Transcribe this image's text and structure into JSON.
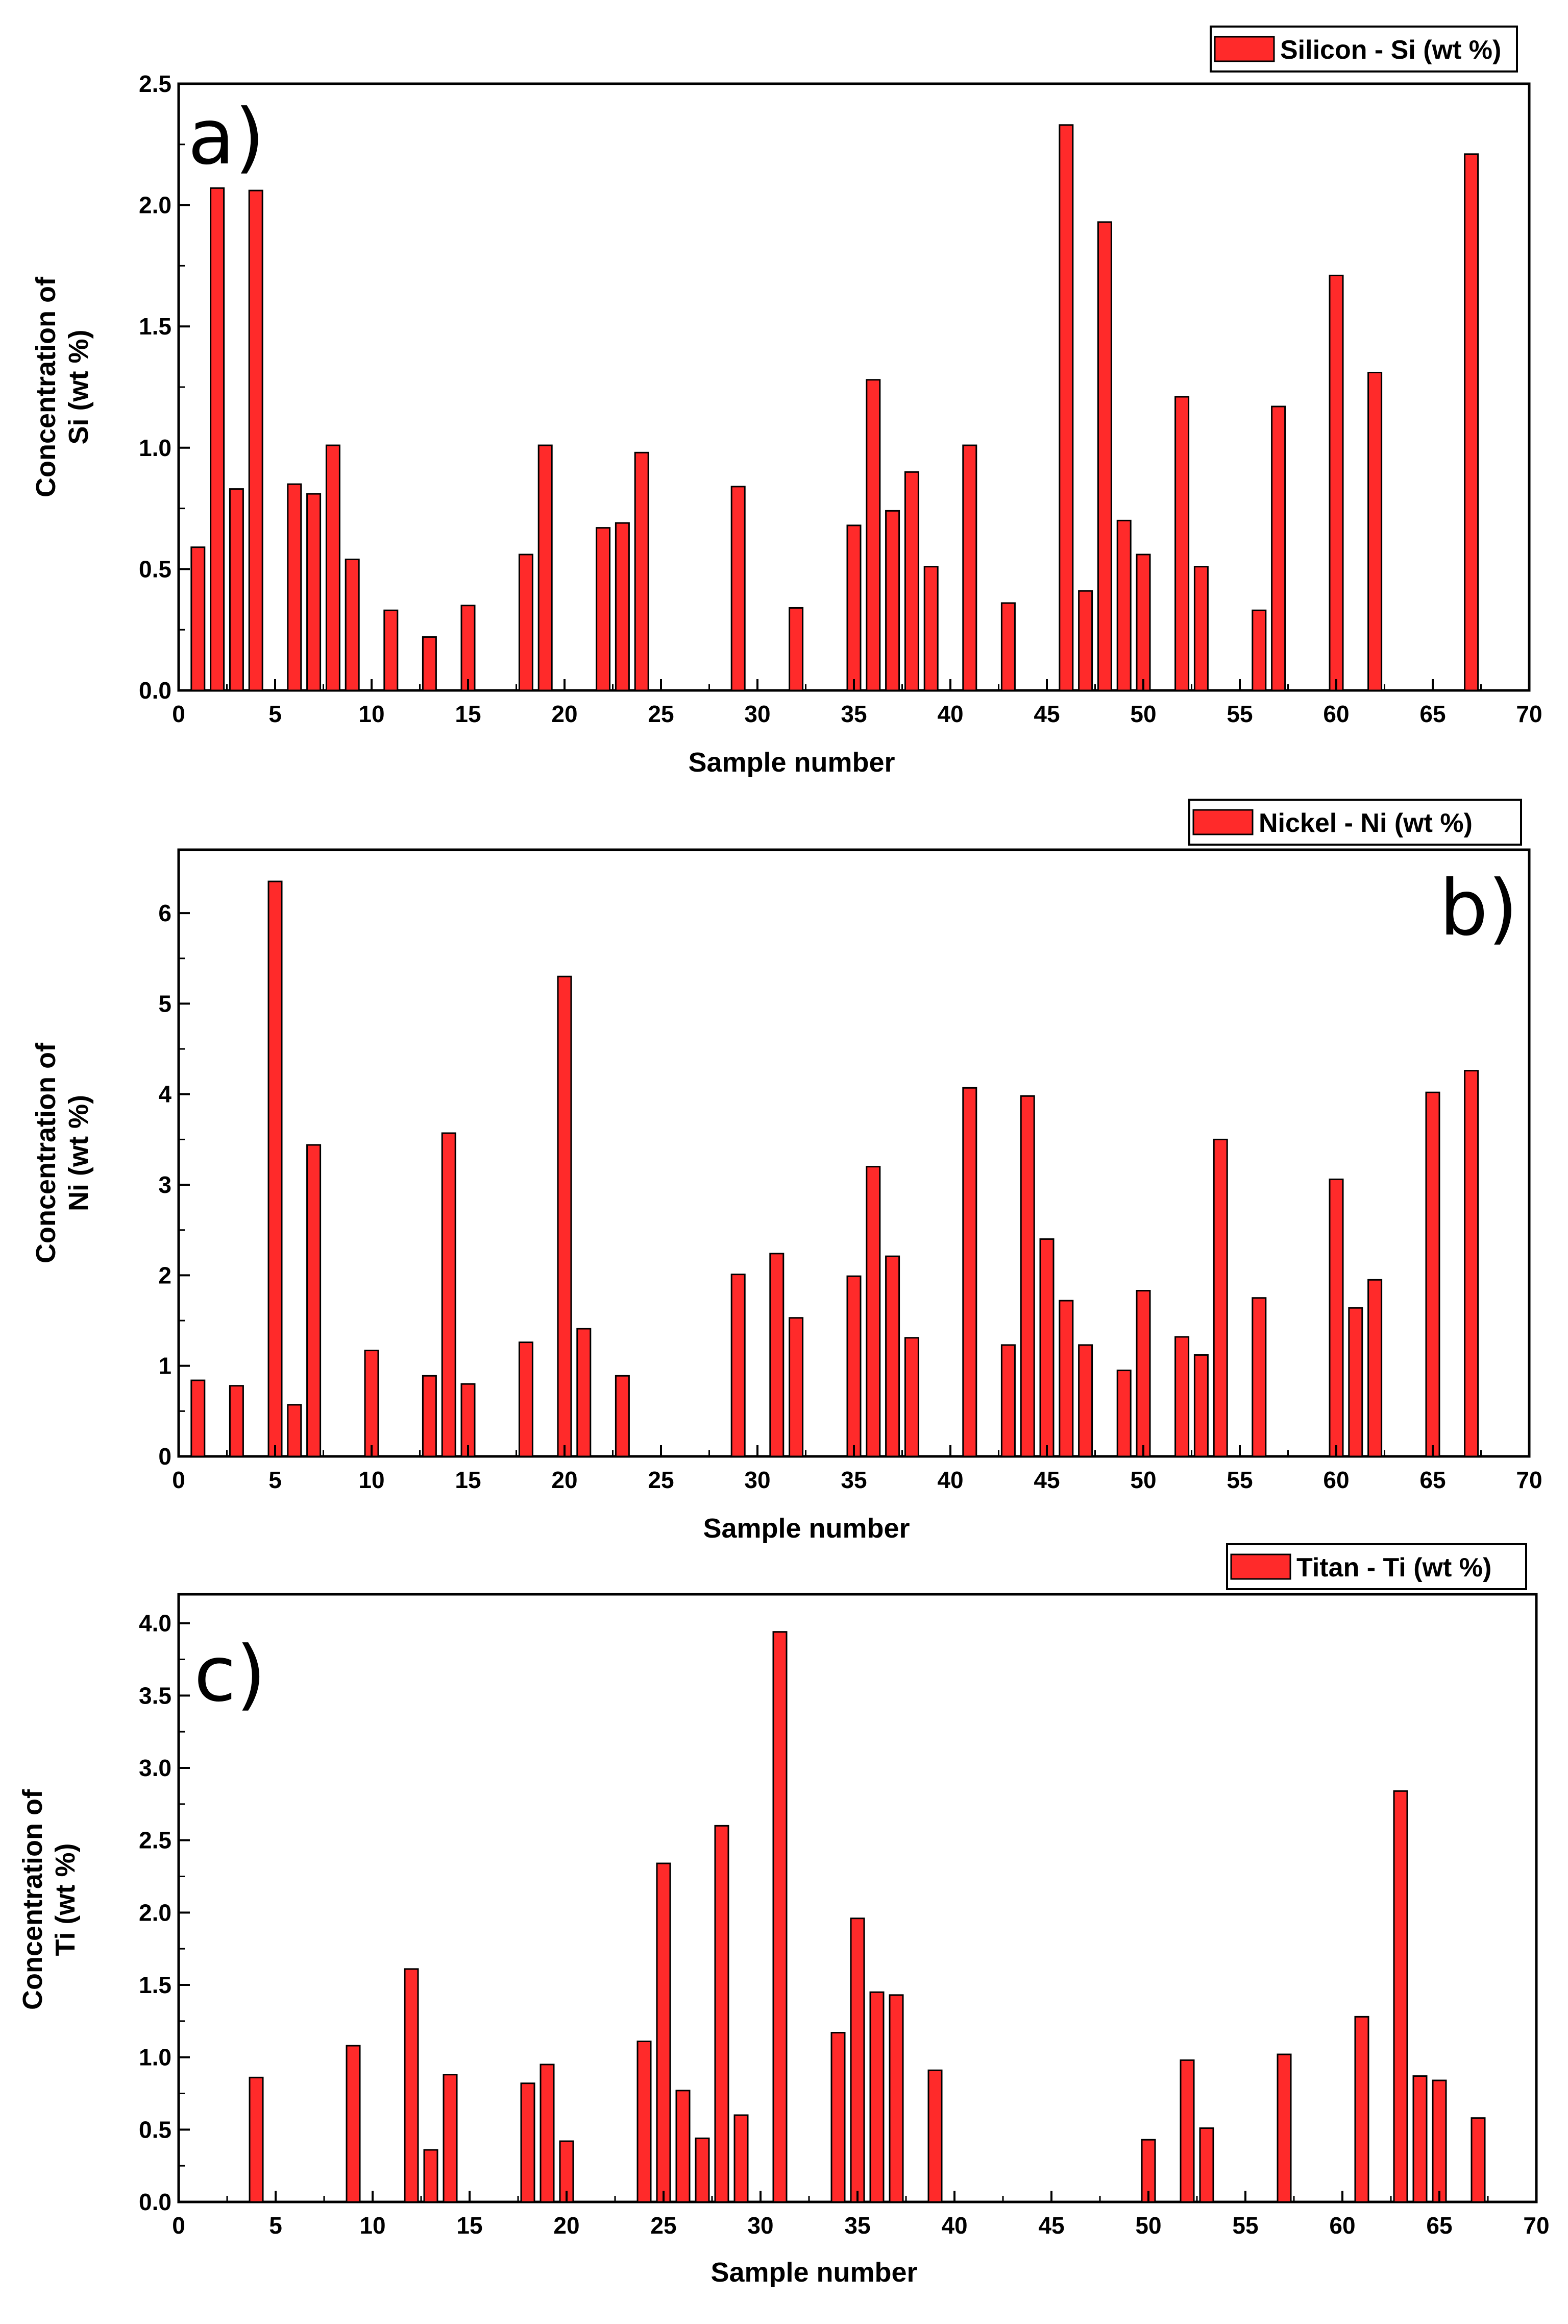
{
  "chart_data": [
    {
      "type": "bar",
      "panel_label": "a)",
      "legend": "Silicon - Si (wt %)",
      "xlabel": "Sample number",
      "ylabel_line1": "Concentration of",
      "ylabel_line2": "Si  (wt %)",
      "xlim": [
        0,
        70
      ],
      "ylim": [
        0,
        2.5
      ],
      "xticks": [
        0,
        5,
        10,
        15,
        20,
        25,
        30,
        35,
        40,
        45,
        50,
        55,
        60,
        65,
        70
      ],
      "yticks": [
        "0.0",
        "0.5",
        "1.0",
        "1.5",
        "2.0",
        "2.5"
      ],
      "ytick_values": [
        0,
        0.5,
        1.0,
        1.5,
        2.0,
        2.5
      ],
      "color": "#ff2a2a",
      "x": [
        1,
        2,
        3,
        4,
        6,
        7,
        8,
        9,
        11,
        13,
        15,
        18,
        19,
        22,
        23,
        24,
        29,
        32,
        35,
        36,
        37,
        38,
        39,
        41,
        43,
        46,
        47,
        48,
        49,
        50,
        52,
        53,
        56,
        57,
        60,
        62,
        67
      ],
      "values": [
        0.59,
        2.07,
        0.83,
        2.06,
        0.85,
        0.81,
        1.01,
        0.54,
        0.33,
        0.22,
        0.35,
        0.56,
        1.01,
        0.67,
        0.69,
        0.98,
        0.84,
        0.34,
        0.68,
        1.28,
        0.74,
        0.9,
        0.51,
        1.01,
        0.36,
        2.33,
        0.41,
        1.93,
        0.7,
        0.56,
        1.21,
        0.51,
        0.33,
        1.17,
        1.71,
        1.31,
        2.21
      ]
    },
    {
      "type": "bar",
      "panel_label": "b)",
      "legend": "Nickel - Ni (wt %)",
      "xlabel": "Sample number",
      "ylabel_line1": "Concentration of",
      "ylabel_line2": "Ni  (wt %)",
      "xlim": [
        0,
        70
      ],
      "ylim": [
        0,
        6.7
      ],
      "xticks": [
        0,
        5,
        10,
        15,
        20,
        25,
        30,
        35,
        40,
        45,
        50,
        55,
        60,
        65,
        70
      ],
      "yticks": [
        "0",
        "1",
        "2",
        "3",
        "4",
        "5",
        "6"
      ],
      "ytick_values": [
        0,
        1,
        2,
        3,
        4,
        5,
        6
      ],
      "color": "#ff2a2a",
      "x": [
        1,
        3,
        5,
        6,
        7,
        10,
        13,
        14,
        15,
        18,
        20,
        21,
        23,
        29,
        31,
        32,
        35,
        36,
        37,
        38,
        41,
        43,
        44,
        45,
        46,
        47,
        49,
        50,
        52,
        53,
        54,
        56,
        60,
        61,
        62,
        65,
        67
      ],
      "values": [
        0.84,
        0.78,
        6.35,
        0.57,
        3.44,
        1.17,
        0.89,
        3.57,
        0.8,
        1.26,
        5.3,
        1.41,
        0.89,
        2.01,
        2.24,
        1.53,
        1.99,
        3.2,
        2.21,
        1.31,
        4.07,
        1.23,
        3.98,
        2.4,
        1.72,
        1.23,
        0.95,
        1.83,
        1.32,
        1.12,
        3.5,
        1.75,
        3.06,
        1.64,
        1.95,
        4.02,
        4.26
      ]
    },
    {
      "type": "bar",
      "panel_label": "c)",
      "legend": "Titan - Ti (wt %)",
      "xlabel": "Sample number",
      "ylabel_line1": "Concentration of",
      "ylabel_line2": "Ti  (wt %)",
      "xlim": [
        0,
        70
      ],
      "ylim": [
        0,
        4.2
      ],
      "xticks": [
        0,
        5,
        10,
        15,
        20,
        25,
        30,
        35,
        40,
        45,
        50,
        55,
        60,
        65,
        70
      ],
      "yticks": [
        "0.0",
        "0.5",
        "1.0",
        "1.5",
        "2.0",
        "2.5",
        "3.0",
        "3.5",
        "4.0"
      ],
      "ytick_values": [
        0,
        0.5,
        1.0,
        1.5,
        2.0,
        2.5,
        3.0,
        3.5,
        4.0
      ],
      "color": "#ff2a2a",
      "x": [
        4,
        9,
        12,
        13,
        14,
        18,
        19,
        20,
        24,
        25,
        26,
        27,
        28,
        29,
        31,
        34,
        35,
        36,
        37,
        39,
        50,
        52,
        53,
        57,
        61,
        63,
        64,
        65,
        67
      ],
      "values": [
        0.86,
        1.08,
        1.61,
        0.36,
        0.88,
        0.82,
        0.95,
        0.42,
        1.11,
        2.34,
        0.77,
        0.44,
        2.6,
        0.6,
        3.94,
        1.17,
        1.96,
        1.45,
        1.43,
        0.91,
        0.43,
        0.98,
        0.51,
        1.02,
        1.28,
        2.84,
        0.87,
        0.84,
        0.58
      ]
    }
  ]
}
